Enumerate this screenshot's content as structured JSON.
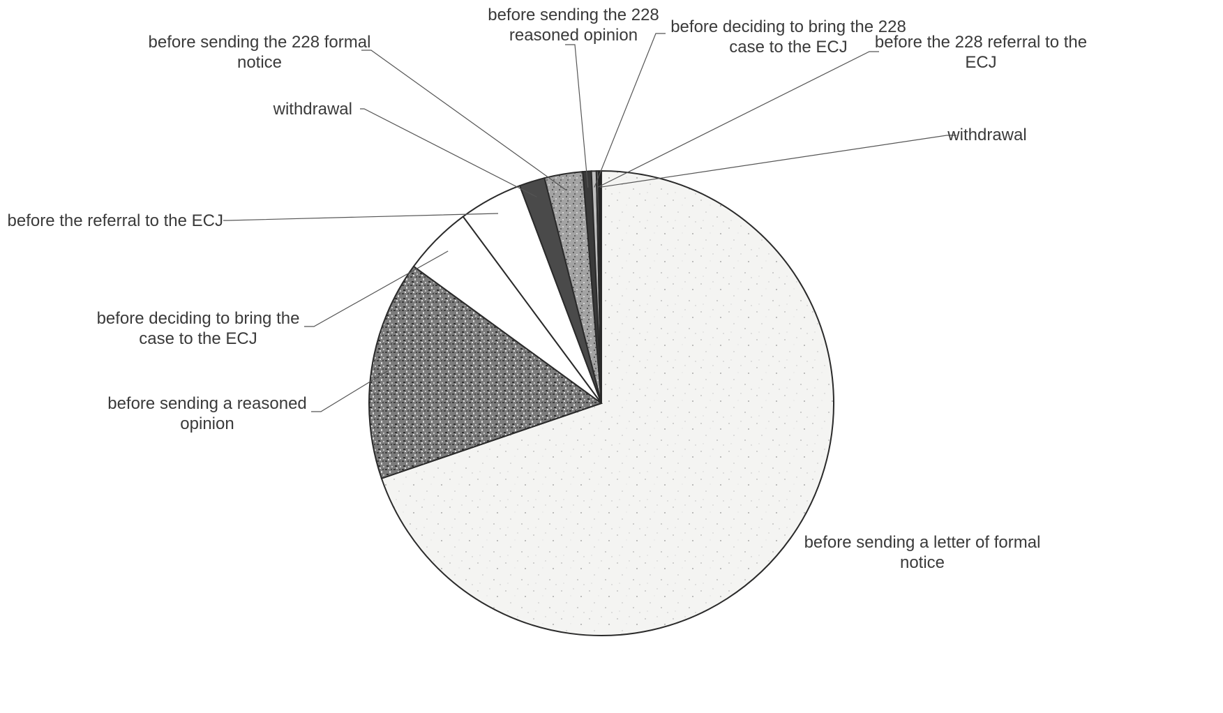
{
  "chart_data": {
    "type": "pie",
    "start_angle_deg": 0,
    "direction": "clockwise",
    "legend": "none",
    "slices": [
      {
        "label": [
          "before sending a letter of formal",
          "notice"
        ],
        "value": 70.8,
        "color": "#f3f3f1",
        "pattern": "fine-speckle"
      },
      {
        "label": [
          "before sending a reasoned",
          "opinion"
        ],
        "value": 15.5,
        "color": "#8f8f8f",
        "pattern": "coarse-speckle"
      },
      {
        "label": [
          "before deciding to bring the",
          "case to the ECJ"
        ],
        "value": 4.9,
        "color": "#ffffff",
        "pattern": "none"
      },
      {
        "label": [
          "before the referral to the ECJ"
        ],
        "value": 4.5,
        "color": "#ffffff",
        "pattern": "none"
      },
      {
        "label": [
          "withdrawal"
        ],
        "value": 1.8,
        "color": "#4a4a4a",
        "pattern": "solid"
      },
      {
        "label": [
          "before sending the 228 formal",
          "notice"
        ],
        "value": 2.7,
        "color": "#9a9a9a",
        "pattern": "medium-speckle"
      },
      {
        "label": [
          "before sending the 228",
          "reasoned opinion"
        ],
        "value": 0.6,
        "color": "#3a3a3a",
        "pattern": "solid"
      },
      {
        "label": [
          "before deciding to bring the 228",
          "case to the ECJ"
        ],
        "value": 0.35,
        "color": "#bdbdbd",
        "pattern": "solid"
      },
      {
        "label": [
          "before the 228 referral to the",
          "ECJ"
        ],
        "value": 0.15,
        "color": "#6a6a6a",
        "pattern": "solid"
      },
      {
        "label": [
          "withdrawal"
        ],
        "value": 0.2,
        "color": "#202020",
        "pattern": "solid"
      }
    ]
  }
}
